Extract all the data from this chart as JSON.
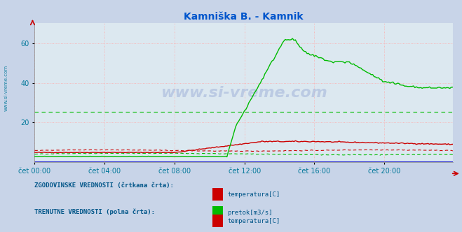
{
  "title": "Kamniška B. - Kamnik",
  "title_color": "#0055cc",
  "bg_color": "#c8d4e8",
  "plot_bg_color": "#dce8f0",
  "watermark_text": "www.si-vreme.com",
  "x_ticks_labels": [
    "čet 00:00",
    "čet 04:00",
    "čet 08:00",
    "čet 12:00",
    "čet 16:00",
    "čet 20:00"
  ],
  "x_ticks_pos": [
    0,
    48,
    96,
    144,
    192,
    240
  ],
  "ylim": [
    0,
    70
  ],
  "yticks": [
    20,
    40,
    60
  ],
  "grid_color": "#ffaaaa",
  "total_points": 288,
  "legend_hist_label": "ZGODOVINSKE VREDNOSTI (črtkana črta):",
  "legend_curr_label": "TRENUTNE VREDNOSTI (polna črta):",
  "legend_temp_label": "temperatura[C]",
  "legend_pretok_label": "pretok[m3/s]",
  "color_temp": "#cc0000",
  "color_pretok": "#00bb00",
  "color_blue_line": "#0000cc",
  "sidebar_color": "#007799",
  "text_color": "#005588"
}
